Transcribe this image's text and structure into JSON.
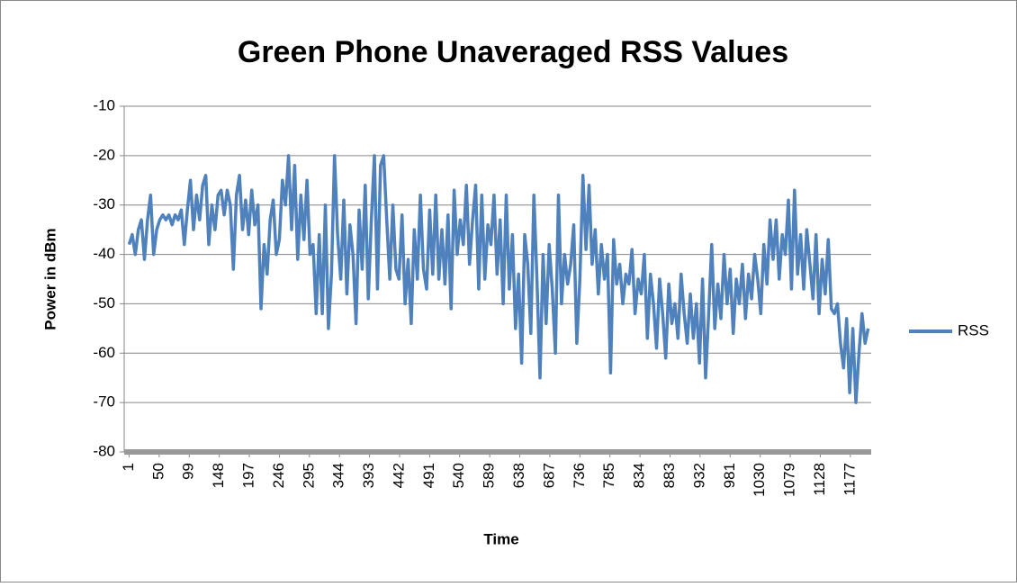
{
  "chart_data": {
    "type": "line",
    "title": "Green Phone Unaveraged RSS Values",
    "x_label": "Time",
    "y_label": "Power in dBm",
    "x": [
      1,
      6,
      11,
      16,
      21,
      26,
      31,
      36,
      41,
      46,
      51,
      56,
      61,
      66,
      71,
      76,
      81,
      86,
      91,
      96,
      101,
      106,
      111,
      116,
      121,
      126,
      131,
      136,
      141,
      146,
      151,
      156,
      161,
      166,
      171,
      176,
      181,
      186,
      191,
      196,
      201,
      206,
      211,
      216,
      221,
      226,
      231,
      236,
      241,
      246,
      251,
      256,
      261,
      266,
      271,
      276,
      281,
      286,
      291,
      296,
      301,
      306,
      311,
      316,
      321,
      326,
      331,
      336,
      341,
      346,
      351,
      356,
      361,
      366,
      371,
      376,
      381,
      386,
      391,
      396,
      401,
      406,
      411,
      416,
      421,
      426,
      431,
      436,
      441,
      446,
      451,
      456,
      461,
      466,
      471,
      476,
      481,
      486,
      491,
      496,
      501,
      506,
      511,
      516,
      521,
      526,
      531,
      536,
      541,
      546,
      551,
      556,
      561,
      566,
      571,
      576,
      581,
      586,
      591,
      596,
      601,
      606,
      611,
      616,
      621,
      626,
      631,
      636,
      641,
      646,
      651,
      656,
      661,
      666,
      671,
      676,
      681,
      686,
      691,
      696,
      701,
      706,
      711,
      716,
      721,
      726,
      731,
      736,
      741,
      746,
      751,
      756,
      761,
      766,
      771,
      776,
      781,
      786,
      791,
      796,
      801,
      806,
      811,
      816,
      821,
      826,
      831,
      836,
      841,
      846,
      851,
      856,
      861,
      866,
      871,
      876,
      881,
      886,
      891,
      896,
      901,
      906,
      911,
      916,
      921,
      926,
      931,
      936,
      941,
      946,
      951,
      956,
      961,
      966,
      971,
      976,
      981,
      986,
      991,
      996,
      1001,
      1006,
      1011,
      1016,
      1021,
      1026,
      1031,
      1036,
      1041,
      1046,
      1051,
      1056,
      1061,
      1066,
      1071,
      1076,
      1081,
      1086,
      1091,
      1096,
      1101,
      1106,
      1111,
      1116,
      1121,
      1126,
      1131,
      1136,
      1141,
      1146,
      1151,
      1156,
      1161,
      1166,
      1171,
      1176,
      1181,
      1186,
      1191,
      1196,
      1201,
      1206
    ],
    "series": [
      {
        "name": "RSS",
        "color": "#4f81bd",
        "values": [
          -38,
          -36,
          -40,
          -35,
          -33,
          -41,
          -33,
          -28,
          -40,
          -35,
          -33,
          -32,
          -33,
          -32,
          -34,
          -32,
          -33,
          -31,
          -38,
          -31,
          -25,
          -35,
          -28,
          -33,
          -26,
          -24,
          -38,
          -30,
          -35,
          -28,
          -27,
          -32,
          -27,
          -30,
          -43,
          -28,
          -24,
          -35,
          -29,
          -36,
          -27,
          -34,
          -30,
          -51,
          -38,
          -44,
          -33,
          -29,
          -40,
          -37,
          -25,
          -30,
          -20,
          -35,
          -22,
          -41,
          -28,
          -37,
          -25,
          -40,
          -38,
          -52,
          -36,
          -52,
          -30,
          -55,
          -44,
          -20,
          -36,
          -45,
          -29,
          -48,
          -34,
          -40,
          -54,
          -31,
          -43,
          -26,
          -49,
          -33,
          -20,
          -47,
          -22,
          -20,
          -33,
          -45,
          -30,
          -43,
          -45,
          -32,
          -50,
          -41,
          -54,
          -35,
          -45,
          -28,
          -43,
          -47,
          -31,
          -44,
          -28,
          -45,
          -35,
          -46,
          -32,
          -51,
          -27,
          -40,
          -33,
          -38,
          -26,
          -42,
          -33,
          -26,
          -47,
          -28,
          -45,
          -34,
          -38,
          -28,
          -44,
          -33,
          -50,
          -28,
          -47,
          -36,
          -55,
          -44,
          -62,
          -36,
          -42,
          -56,
          -28,
          -45,
          -65,
          -40,
          -54,
          -38,
          -47,
          -60,
          -28,
          -50,
          -40,
          -46,
          -42,
          -34,
          -58,
          -45,
          -24,
          -39,
          -26,
          -42,
          -35,
          -48,
          -38,
          -45,
          -40,
          -64,
          -37,
          -46,
          -42,
          -50,
          -44,
          -46,
          -39,
          -52,
          -45,
          -48,
          -40,
          -57,
          -44,
          -50,
          -59,
          -45,
          -52,
          -61,
          -46,
          -54,
          -50,
          -57,
          -44,
          -52,
          -58,
          -48,
          -57,
          -50,
          -62,
          -45,
          -65,
          -52,
          -38,
          -55,
          -46,
          -53,
          -40,
          -50,
          -43,
          -56,
          -45,
          -50,
          -42,
          -53,
          -44,
          -49,
          -40,
          -45,
          -52,
          -38,
          -46,
          -33,
          -41,
          -33,
          -45,
          -36,
          -40,
          -29,
          -47,
          -27,
          -44,
          -36,
          -47,
          -35,
          -42,
          -49,
          -36,
          -52,
          -41,
          -48,
          -37,
          -51,
          -52,
          -50,
          -58,
          -63,
          -53,
          -68,
          -55,
          -70,
          -60,
          -52,
          -58,
          -55
        ]
      }
    ],
    "xlim": [
      -7,
      1211
    ],
    "xticks": [
      1,
      50,
      99,
      148,
      197,
      246,
      295,
      344,
      393,
      442,
      491,
      540,
      589,
      638,
      687,
      736,
      785,
      834,
      883,
      932,
      981,
      1030,
      1079,
      1128,
      1177
    ],
    "ylim": [
      -80,
      -10
    ],
    "yticks": [
      -80,
      -70,
      -60,
      -50,
      -40,
      -30,
      -20,
      -10
    ],
    "grid": true,
    "legend": "right"
  }
}
